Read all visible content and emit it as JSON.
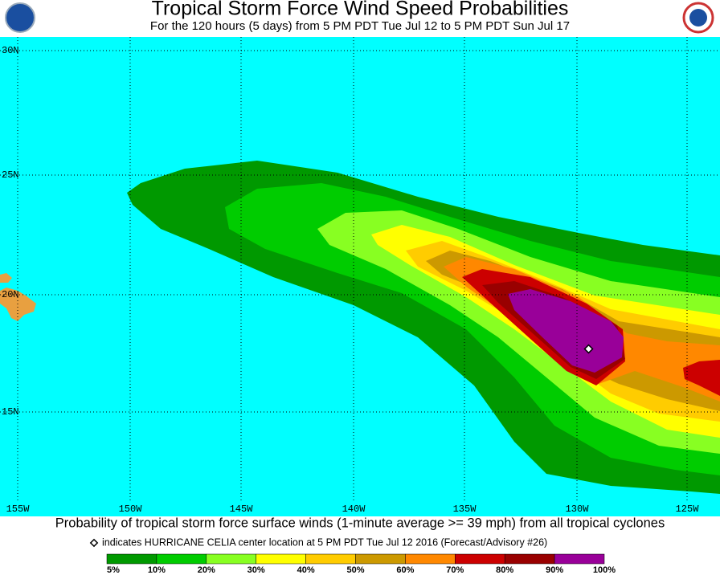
{
  "title": "Tropical Storm Force Wind Speed Probabilities",
  "subtitle": "For the 120 hours (5 days) from 5 PM PDT Tue Jul 12 to 5 PM PDT Sun Jul 17",
  "latitude_labels": [
    "30N",
    "25N",
    "20N",
    "15N"
  ],
  "longitude_labels": [
    "155W",
    "150W",
    "145W",
    "140W",
    "135W",
    "130W",
    "125W"
  ],
  "caption": "Probability of tropical storm force surface winds (1-minute average >= 39 mph) from all tropical cyclones",
  "marker_note": "indicates HURRICANE CELIA center location at 5 PM PDT Tue Jul 12 2016 (Forecast/Advisory #26)",
  "legend": {
    "labels": [
      "5%",
      "10%",
      "20%",
      "30%",
      "40%",
      "50%",
      "60%",
      "70%",
      "80%",
      "90%",
      "100%"
    ],
    "colors": [
      "#009900",
      "#00cc00",
      "#88ff22",
      "#ffff00",
      "#ffcc00",
      "#cc9900",
      "#ff8800",
      "#cc0000",
      "#990000",
      "#990099"
    ]
  },
  "ocean_color": "#00ffff",
  "land_color": "#e8a040"
}
